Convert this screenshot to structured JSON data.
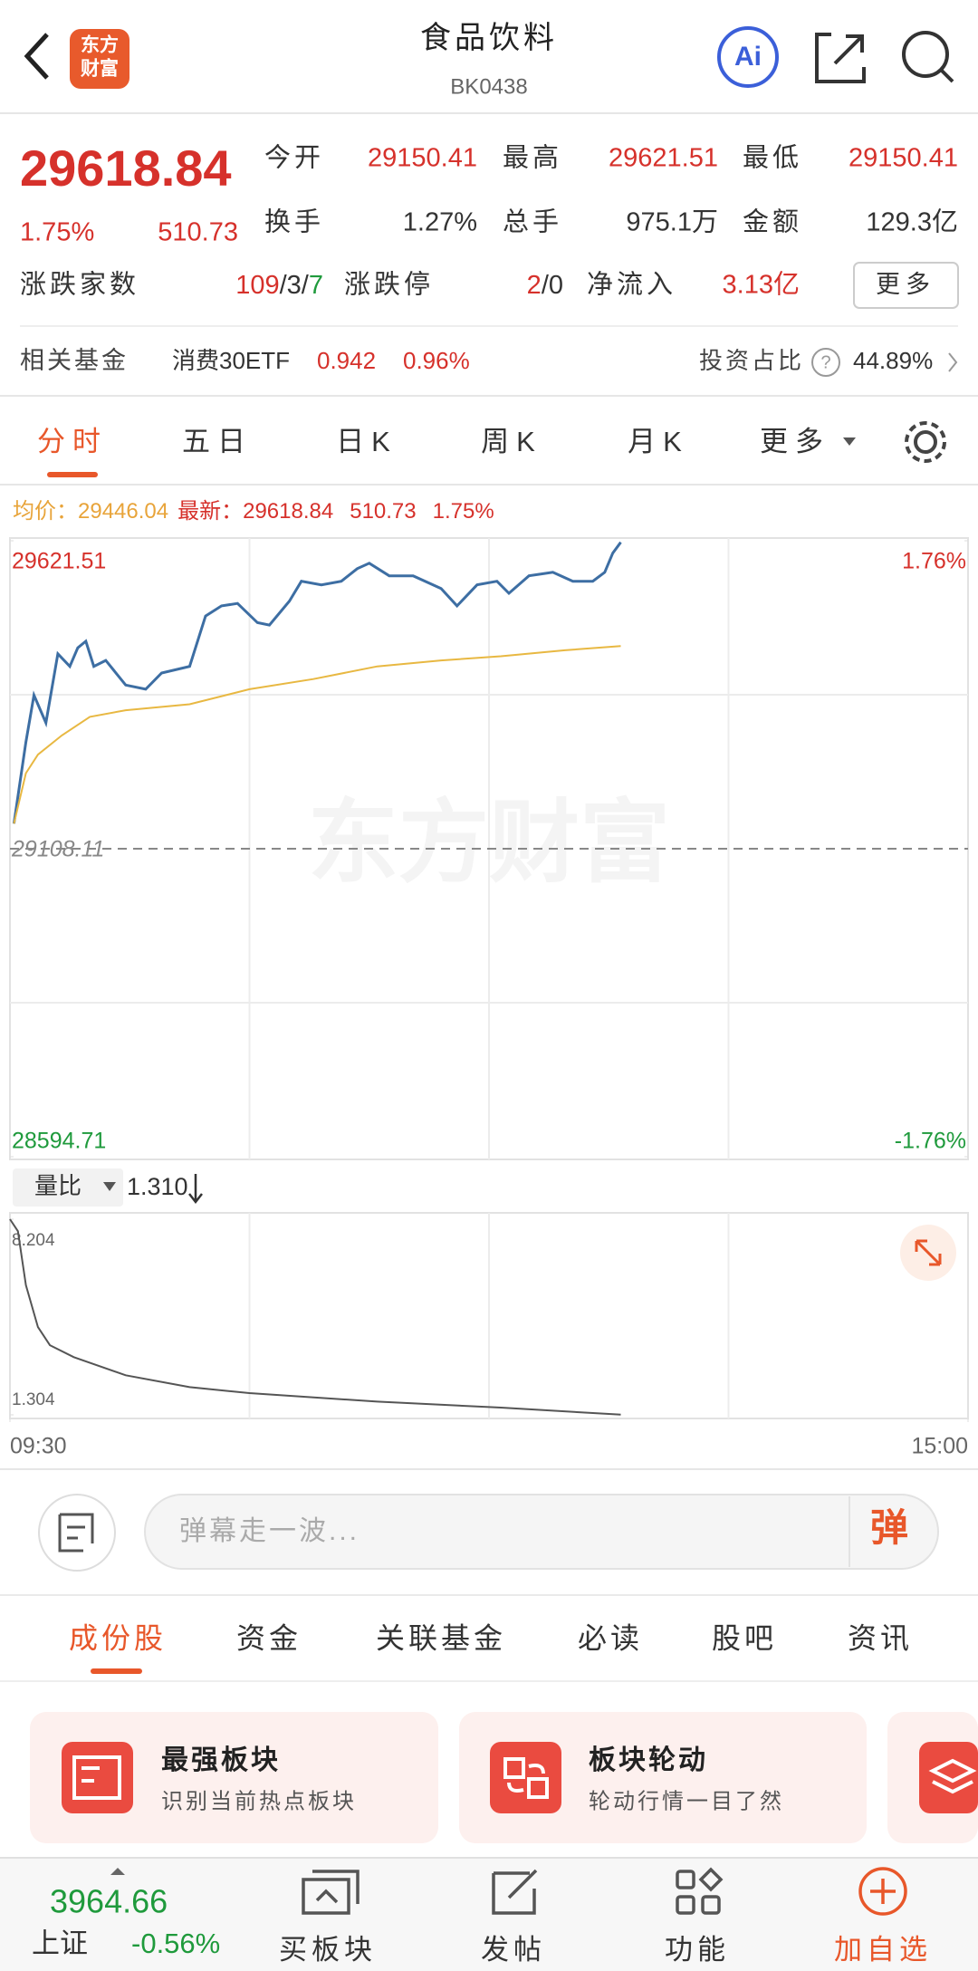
{
  "header": {
    "logo": [
      "东方",
      "财富"
    ],
    "title": "食品饮料",
    "code": "BK0438",
    "ai": "Ai"
  },
  "quote": {
    "price": "29618.84",
    "change_pct": "1.75%",
    "change": "510.73",
    "open_label": "今开",
    "open": "29150.41",
    "high_label": "最高",
    "high": "29621.51",
    "low_label": "最低",
    "low": "29150.41",
    "turnover_label": "换手",
    "turnover": "1.27%",
    "volume_label": "总手",
    "volume": "975.1万",
    "amount_label": "金额",
    "amount": "129.3亿",
    "breadth_label": "涨跌家数",
    "breadth": [
      "109",
      "/3/",
      "7"
    ],
    "limit_label": "涨跌停",
    "limit": [
      "2",
      "/0"
    ],
    "inflow_label": "净流入",
    "inflow": "3.13亿",
    "more": "更多",
    "fund_label": "相关基金",
    "fund_name": "消费30ETF",
    "fund_price": "0.942",
    "fund_change": "0.96%",
    "weight_label": "投资占比",
    "weight_help": "?",
    "weight": "44.89%"
  },
  "tabs": [
    "分时",
    "五日",
    "日K",
    "周K",
    "月K",
    "更多"
  ],
  "chart_data": [
    {
      "type": "line",
      "avg_label": "均价：29446.04",
      "latest_label": "最新：29618.84",
      "latest_change": "510.73",
      "latest_pct": "1.75%",
      "watermark": "东方财富",
      "xlim": [
        0,
        240
      ],
      "xgrid": [
        60,
        120,
        180
      ],
      "ylim": [
        28594.71,
        29621.51
      ],
      "yticks": [
        29621.51,
        29108.11,
        28594.71
      ],
      "ygrid": [
        29364.81,
        28851.41
      ],
      "y2lim": [
        -1.76,
        1.76
      ],
      "y2ticks": [
        {
          "value": 1.76,
          "label": "1.76%"
        },
        {
          "value": -1.76,
          "label": "-1.76%"
        }
      ],
      "series": [
        {
          "color": "#3d6ea3",
          "x": [
            1,
            4,
            6,
            9,
            12,
            15,
            17,
            19,
            21,
            24,
            29,
            34,
            38,
            45,
            49,
            53,
            57,
            62,
            65,
            70,
            73,
            78,
            83,
            87,
            90,
            95,
            101,
            108,
            112,
            117,
            122,
            125,
            130,
            136,
            141,
            146,
            149,
            151,
            153
          ],
          "values": [
            29150,
            29286,
            29364,
            29318,
            29433,
            29412,
            29443,
            29454,
            29412,
            29422,
            29381,
            29374,
            29401,
            29412,
            29496,
            29513,
            29517,
            29485,
            29481,
            29521,
            29554,
            29548,
            29554,
            29575,
            29584,
            29563,
            29563,
            29542,
            29513,
            29548,
            29554,
            29534,
            29563,
            29569,
            29554,
            29554,
            29569,
            29601,
            29619
          ]
        },
        {
          "color": "#e8b842",
          "x": [
            1,
            4,
            7,
            13,
            20,
            29,
            45,
            60,
            76,
            92,
            108,
            123,
            139,
            153
          ],
          "values": [
            29150,
            29234,
            29265,
            29297,
            29328,
            29339,
            29349,
            29374,
            29391,
            29412,
            29422,
            29429,
            29439,
            29446
          ]
        }
      ]
    },
    {
      "type": "line",
      "label": "量比",
      "current": "1.310",
      "xlim": [
        0,
        240
      ],
      "xgrid": [
        60,
        120,
        180
      ],
      "xticks": [
        {
          "value": 0,
          "label": "09:30"
        },
        {
          "value": 240,
          "label": "15:00"
        }
      ],
      "ylim": [
        1.304,
        8.204
      ],
      "yticks": [
        8.204,
        1.304
      ],
      "series": [
        {
          "color": "#555555",
          "x": [
            0,
            2,
            4,
            7,
            10,
            16,
            29,
            45,
            60,
            92,
            123,
            153
          ],
          "values": [
            8.204,
            7.78,
            5.88,
            4.4,
            3.76,
            3.34,
            2.7,
            2.28,
            2.07,
            1.77,
            1.56,
            1.31
          ]
        }
      ]
    }
  ],
  "comment": {
    "placeholder": "弹幕走一波...",
    "button": "弹"
  },
  "section_tabs": [
    "成份股",
    "资金",
    "关联基金",
    "必读",
    "股吧",
    "资讯"
  ],
  "cards": [
    {
      "title": "最强板块",
      "subtitle": "识别当前热点板块"
    },
    {
      "title": "板块轮动",
      "subtitle": "轮动行情一目了然"
    }
  ],
  "bottom_nav": {
    "index_value": "3964.66",
    "index_name": "上证",
    "index_change": "-0.56%",
    "items": [
      "买板块",
      "发帖",
      "功能",
      "加自选"
    ]
  }
}
